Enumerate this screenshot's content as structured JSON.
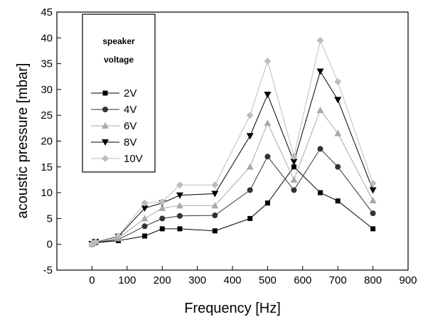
{
  "chart_data": {
    "type": "line",
    "xlabel": "Frequency [Hz]",
    "ylabel": "acoustic pressure [mbar]",
    "xlim": [
      -100,
      900
    ],
    "ylim": [
      -5,
      45
    ],
    "xticks": [
      0,
      100,
      200,
      300,
      400,
      500,
      600,
      700,
      800,
      900
    ],
    "yticks": [
      -5,
      0,
      5,
      10,
      15,
      20,
      25,
      30,
      35,
      40,
      45
    ],
    "legend": {
      "title": [
        "speaker",
        "voltage"
      ],
      "position": "top-left"
    },
    "x": [
      0,
      10,
      75,
      150,
      200,
      250,
      350,
      450,
      500,
      575,
      650,
      700,
      800
    ],
    "series": [
      {
        "name": "2V",
        "marker": "square",
        "color": "#000000",
        "values": [
          0.0,
          0.3,
          0.7,
          1.6,
          3.0,
          3.0,
          2.6,
          5.0,
          8.0,
          15.0,
          10.0,
          8.4,
          3.0
        ]
      },
      {
        "name": "4V",
        "marker": "circle",
        "color": "#333333",
        "values": [
          0.0,
          0.4,
          0.9,
          3.5,
          5.0,
          5.5,
          5.6,
          10.5,
          17.0,
          10.5,
          18.5,
          15.0,
          6.0
        ]
      },
      {
        "name": "6V",
        "marker": "triangle-up",
        "color": "#a9a9a9",
        "values": [
          0.1,
          0.5,
          1.2,
          5.0,
          7.0,
          7.5,
          7.5,
          15.0,
          23.5,
          12.5,
          26.0,
          21.5,
          8.5
        ]
      },
      {
        "name": "8V",
        "marker": "triangle-down",
        "color": "#000000",
        "values": [
          0.1,
          0.5,
          1.5,
          7.0,
          8.0,
          9.5,
          9.8,
          21.0,
          29.0,
          16.0,
          33.5,
          28.0,
          10.5
        ]
      },
      {
        "name": "10V",
        "marker": "diamond",
        "color": "#bdbdbd",
        "values": [
          0.1,
          0.5,
          1.6,
          8.0,
          8.2,
          11.5,
          11.5,
          25.0,
          35.5,
          17.0,
          39.5,
          31.5,
          11.8
        ]
      }
    ]
  }
}
